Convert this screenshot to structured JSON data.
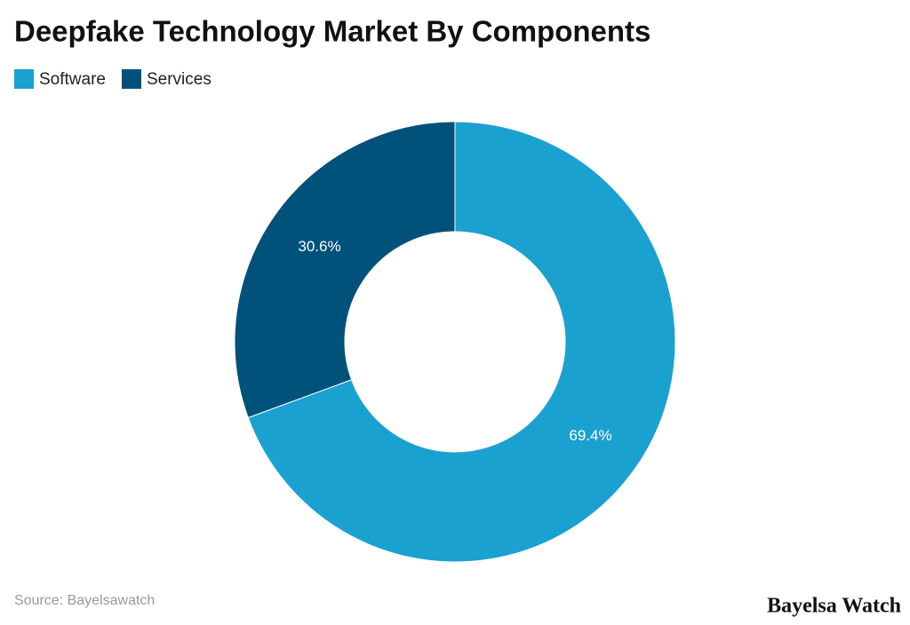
{
  "chart_data": {
    "type": "donut",
    "title": "Deepfake Technology Market By Components",
    "categories": [
      "Software",
      "Services"
    ],
    "values": [
      69.4,
      30.6
    ],
    "value_labels": [
      "69.4%",
      "30.6%"
    ],
    "colors": [
      "#1ba1d0",
      "#01527a"
    ],
    "source": "Source: Bayelsawatch",
    "brand": "Bayelsa Watch"
  }
}
